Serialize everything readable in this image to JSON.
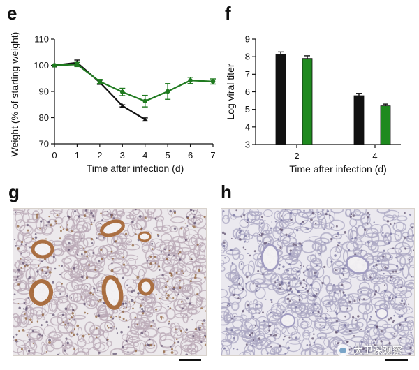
{
  "panels": {
    "e": "e",
    "f": "f",
    "g": "g",
    "h": "h"
  },
  "watermark": {
    "text": "大卫深观察"
  },
  "chart_data": [
    {
      "type": "line",
      "panel": "e",
      "xlabel": "Time after infection (d)",
      "ylabel": "Weight (% of starting weight)",
      "xlim": [
        0,
        7
      ],
      "ylim": [
        70,
        110
      ],
      "xticks": [
        0,
        1,
        2,
        3,
        4,
        5,
        6,
        7
      ],
      "yticks": [
        70,
        80,
        90,
        100,
        110
      ],
      "grid": false,
      "series": [
        {
          "color": "#111111",
          "marker": "triangle",
          "x": [
            0,
            1,
            2,
            3,
            4
          ],
          "values": [
            100,
            101,
            93.5,
            84.5,
            79.3
          ],
          "errors": [
            0.4,
            1.0,
            0.8,
            0.4,
            0.6
          ]
        },
        {
          "color": "#1f7a1f",
          "marker": "circle",
          "x": [
            0,
            1,
            2,
            3,
            4,
            5,
            6,
            7
          ],
          "values": [
            100,
            100.3,
            93.8,
            89.8,
            86.3,
            90,
            94.2,
            93.8
          ],
          "errors": [
            0.4,
            0.8,
            0.8,
            1.4,
            2.2,
            3.0,
            1.2,
            1.0
          ]
        }
      ]
    },
    {
      "type": "bar",
      "panel": "f",
      "xlabel": "Time after infection (d)",
      "ylabel": "Log viral titer",
      "categories": [
        "2",
        "4"
      ],
      "ylim": [
        3,
        9
      ],
      "yticks": [
        3,
        4,
        5,
        6,
        7,
        8,
        9
      ],
      "grid": false,
      "series": [
        {
          "color": "#111111",
          "values": [
            8.15,
            5.78
          ],
          "errors": [
            0.12,
            0.13
          ]
        },
        {
          "color": "#1f8a1f",
          "values": [
            7.9,
            5.2
          ],
          "errors": [
            0.15,
            0.1
          ]
        }
      ]
    }
  ]
}
